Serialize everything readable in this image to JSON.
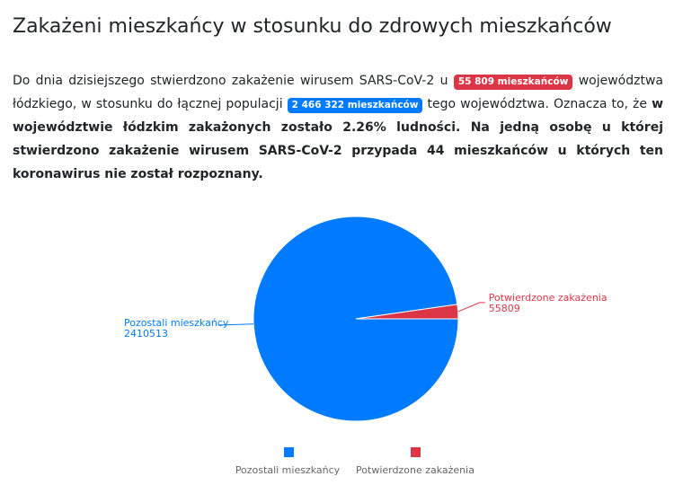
{
  "page": {
    "heading": "Zakażeni mieszkańcy w stosunku do zdrowych mieszkańców"
  },
  "summary": {
    "text_1": "Do dnia dzisiejszego stwierdzono zakażenie wirusem SARS-CoV-2 u ",
    "infected_badge": "55 809 mieszkańców",
    "text_2": " województwa łódzkiego, w stosunku do łącznej populacji ",
    "population_badge": "2 466 322 mieszkańców",
    "text_3": " tego województwa. Oznacza to, że ",
    "bold_text": "w województwie łódzkim zakażonych zostało 2.26% ludności. Na jedną osobę u której stwierdzono zakażenie wirusem SARS-CoV-2 przypada 44 mieszkańców u których ten koronawirus nie został rozpoznany."
  },
  "colors": {
    "text": "#212529",
    "badge_infected": "#dc3545",
    "badge_population": "#007bff",
    "healthy_slice": "#007bff",
    "infected_slice": "#dc3545",
    "legend_text": "#666666"
  },
  "chart_data": {
    "type": "pie",
    "title": "",
    "slices": [
      {
        "name": "Pozostali mieszkańcy",
        "value": 2410513,
        "value_label": "2410513",
        "color": "#007bff"
      },
      {
        "name": "Potwierdzone zakażenia",
        "value": 55809,
        "value_label": "55809",
        "color": "#dc3545"
      }
    ],
    "legend": {
      "position": "bottom",
      "entries": [
        "Pozostali mieszkańcy",
        "Potwierdzone zakażenia"
      ]
    }
  }
}
